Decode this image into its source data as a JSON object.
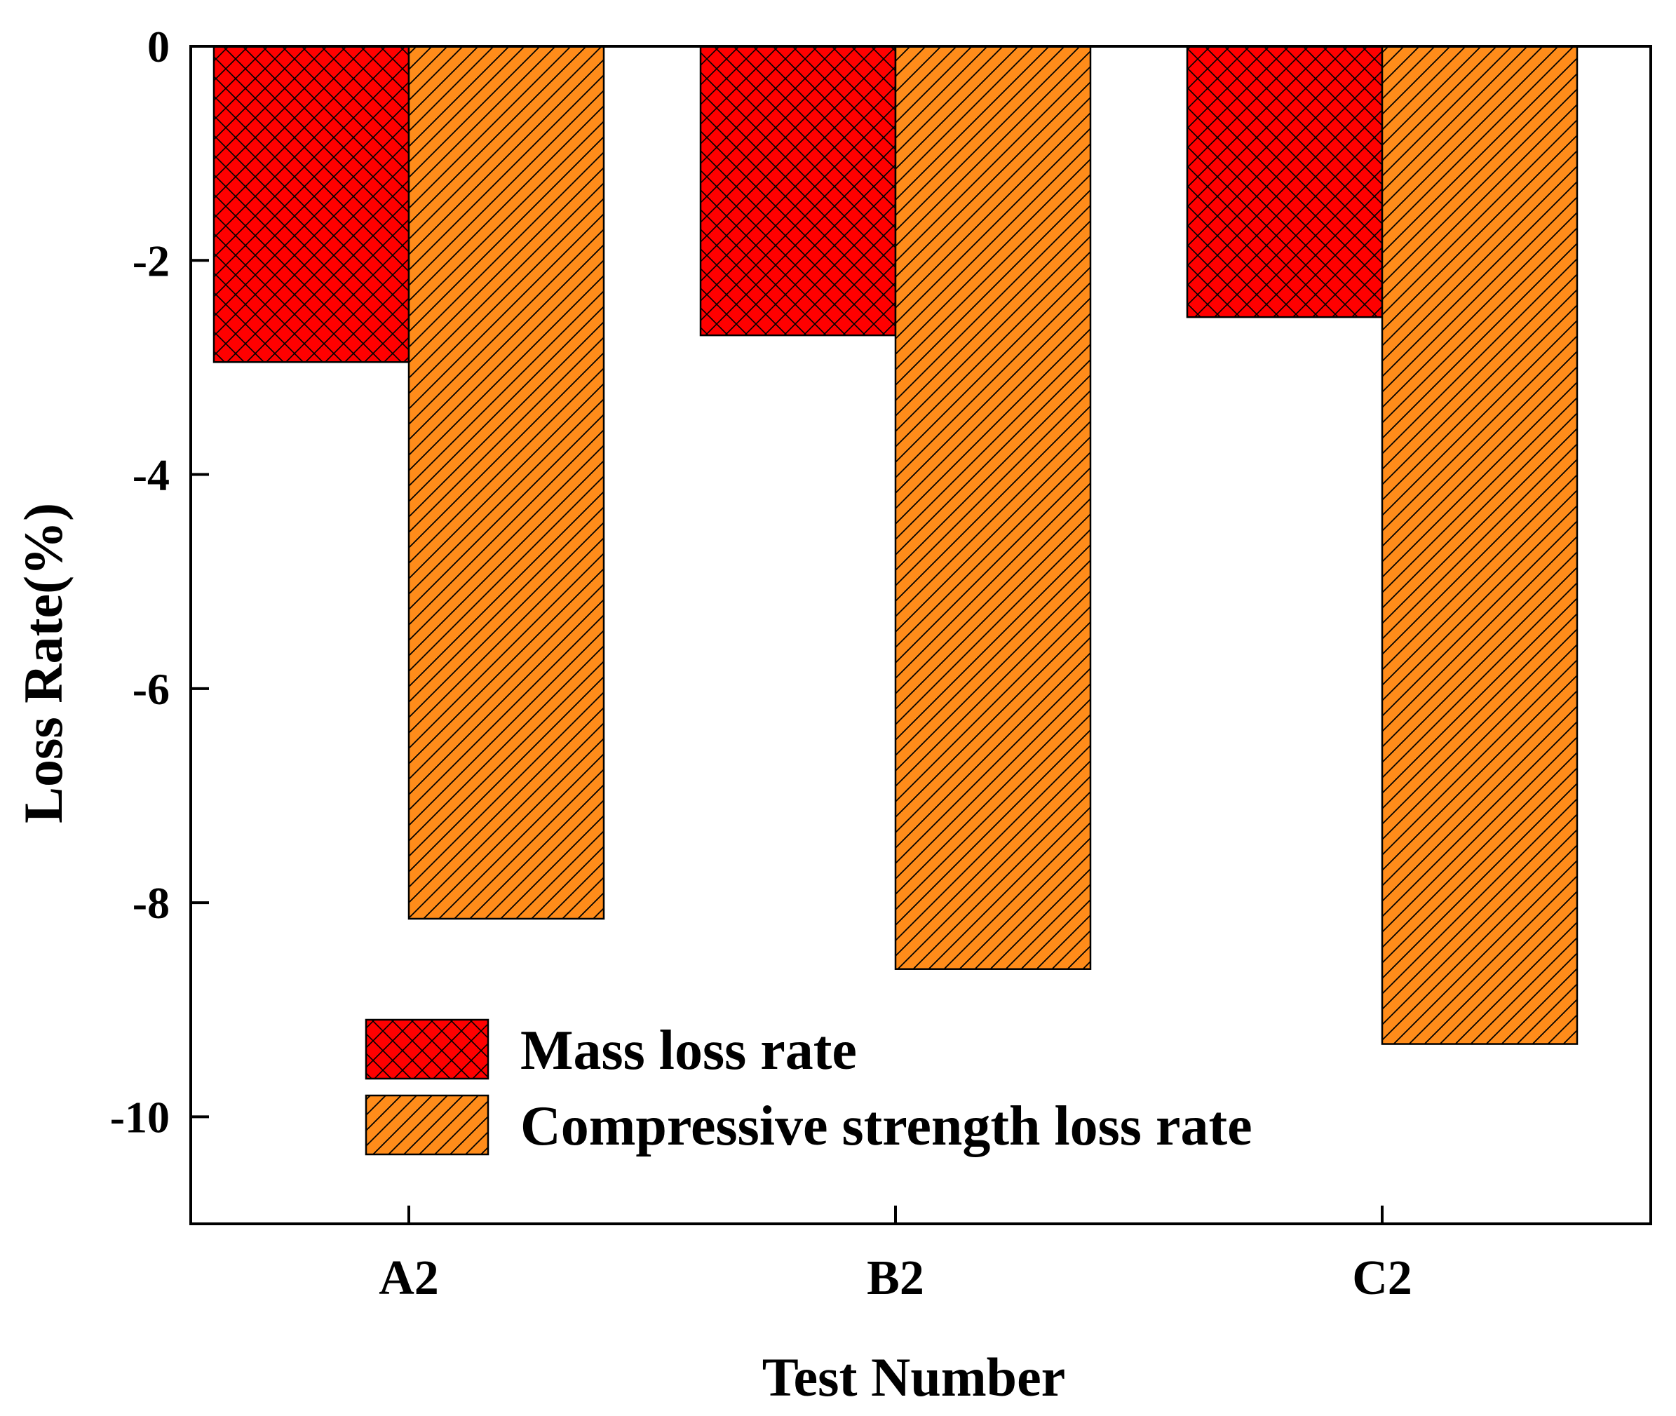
{
  "chart_data": {
    "type": "bar",
    "title": "",
    "xlabel": "Test Number",
    "ylabel": "Loss Rate(%)",
    "categories": [
      "A2",
      "B2",
      "C2"
    ],
    "series": [
      {
        "name": "Mass loss rate",
        "values": [
          -2.95,
          -2.7,
          -2.53
        ],
        "color": "#ff0000",
        "pattern": "crosshatch"
      },
      {
        "name": "Compressive strength loss rate",
        "values": [
          -8.15,
          -8.62,
          -9.32
        ],
        "color": "#ff8c1a",
        "pattern": "diagonal"
      }
    ],
    "ylim": [
      -11,
      0
    ],
    "yticks": [
      0,
      -2,
      -4,
      -6,
      -8,
      -10
    ],
    "ytick_labels": [
      "0",
      "-2",
      "-4",
      "-6",
      "-8",
      "-10"
    ],
    "grid": false,
    "legend_position": "bottom-left"
  }
}
